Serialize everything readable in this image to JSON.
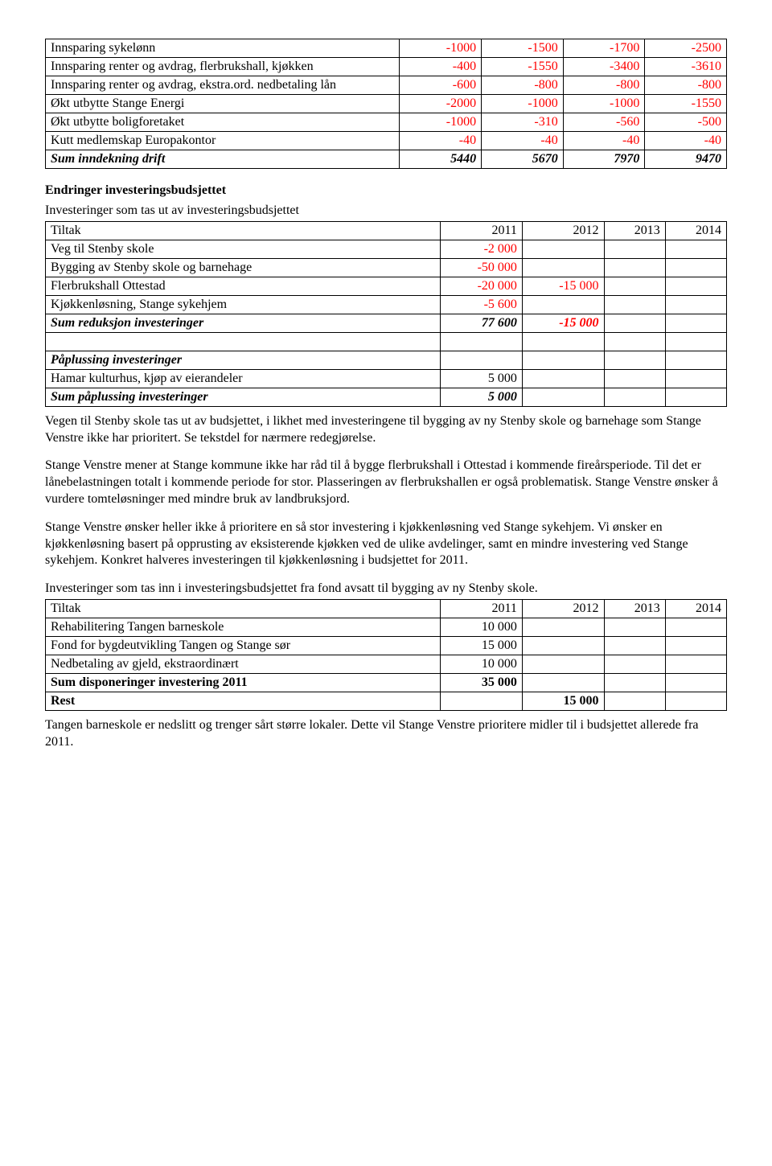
{
  "table1": {
    "rows": [
      {
        "label": "Innsparing sykelønn",
        "c": [
          "-1000",
          "-1500",
          "-1700",
          "-2500"
        ],
        "red": [
          1,
          1,
          1,
          1
        ]
      },
      {
        "label": "Innsparing renter og avdrag, flerbrukshall, kjøkken",
        "c": [
          "-400",
          "-1550",
          "-3400",
          "-3610"
        ],
        "red": [
          1,
          1,
          1,
          1
        ]
      },
      {
        "label": "Innsparing renter og avdrag, ekstra.ord. nedbetaling lån",
        "c": [
          "-600",
          "-800",
          "-800",
          "-800"
        ],
        "red": [
          1,
          1,
          1,
          1
        ]
      },
      {
        "label": "Økt utbytte Stange Energi",
        "c": [
          "-2000",
          "-1000",
          "-1000",
          "-1550"
        ],
        "red": [
          1,
          1,
          1,
          1
        ]
      },
      {
        "label": "Økt utbytte boligforetaket",
        "c": [
          "-1000",
          "-310",
          "-560",
          "-500"
        ],
        "red": [
          1,
          1,
          1,
          1
        ]
      },
      {
        "label": "Kutt medlemskap Europakontor",
        "c": [
          "-40",
          "-40",
          "-40",
          "-40"
        ],
        "red": [
          1,
          1,
          1,
          1
        ]
      },
      {
        "label": "Sum inndekning drift",
        "c": [
          "5440",
          "5670",
          "7970",
          "9470"
        ],
        "red": [
          0,
          0,
          0,
          0
        ],
        "bi": true
      }
    ]
  },
  "section1_title": "Endringer investeringsbudsjettet",
  "table2_intro": "Investeringer som tas ut av investeringsbudsjettet",
  "table2": {
    "header": [
      "Tiltak",
      "2011",
      "2012",
      "2013",
      "2014"
    ],
    "rows": [
      {
        "label": "Veg til Stenby skole",
        "c": [
          "-2 000",
          "",
          "",
          ""
        ],
        "red": [
          1,
          0,
          0,
          0
        ]
      },
      {
        "label": "Bygging av Stenby skole og barnehage",
        "c": [
          "-50 000",
          "",
          "",
          ""
        ],
        "red": [
          1,
          0,
          0,
          0
        ]
      },
      {
        "label": "Flerbrukshall Ottestad",
        "c": [
          "-20 000",
          "-15 000",
          "",
          ""
        ],
        "red": [
          1,
          1,
          0,
          0
        ]
      },
      {
        "label": "Kjøkkenløsning, Stange sykehjem",
        "c": [
          "-5 600",
          "",
          "",
          ""
        ],
        "red": [
          1,
          0,
          0,
          0
        ]
      },
      {
        "label": "Sum reduksjon investeringer",
        "c": [
          "77 600",
          "-15 000",
          "",
          ""
        ],
        "red": [
          0,
          1,
          0,
          0
        ],
        "bi": true
      }
    ],
    "spacer": true,
    "rows2": [
      {
        "label": "Påplussing investeringer",
        "c": [
          "",
          "",
          "",
          ""
        ],
        "bi": true
      },
      {
        "label": "Hamar kulturhus, kjøp av eierandeler",
        "c": [
          "5 000",
          "",
          "",
          ""
        ],
        "red": [
          0,
          0,
          0,
          0
        ]
      },
      {
        "label": "Sum påplussing investeringer",
        "c": [
          "5 000",
          "",
          "",
          ""
        ],
        "red": [
          0,
          0,
          0,
          0
        ],
        "bi": true
      }
    ]
  },
  "para1": "Vegen til Stenby skole tas ut av budsjettet, i likhet med investeringene til bygging av ny Stenby skole og barnehage som Stange Venstre ikke har prioritert. Se tekstdel for nærmere redegjørelse.",
  "para2": "Stange Venstre mener at Stange kommune ikke har råd til å bygge flerbrukshall i Ottestad i kommende fireårsperiode. Til det er lånebelastningen totalt i kommende periode for stor. Plasseringen av flerbrukshallen er også problematisk. Stange Venstre ønsker å vurdere tomteløsninger med mindre bruk av landbruksjord.",
  "para3": "Stange Venstre ønsker heller ikke å prioritere en så stor investering i kjøkkenløsning ved Stange sykehjem. Vi ønsker en kjøkkenløsning basert på opprusting av eksisterende kjøkken ved de ulike avdelinger, samt en mindre investering ved Stange sykehjem.  Konkret halveres investeringen til kjøkkenløsning i budsjettet for 2011.",
  "table3_intro": "Investeringer som tas inn i investeringsbudsjettet fra fond avsatt til bygging av ny Stenby skole.",
  "table3": {
    "header": [
      "Tiltak",
      "2011",
      "2012",
      "2013",
      "2014"
    ],
    "rows": [
      {
        "label": "Rehabilitering Tangen barneskole",
        "c": [
          "10 000",
          "",
          "",
          ""
        ]
      },
      {
        "label": "Fond for bygdeutvikling Tangen og Stange sør",
        "c": [
          "15 000",
          "",
          "",
          ""
        ]
      },
      {
        "label": "Nedbetaling av gjeld, ekstraordinært",
        "c": [
          "10 000",
          "",
          "",
          ""
        ]
      },
      {
        "label": "Sum disponeringer investering 2011",
        "c": [
          "35 000",
          "",
          "",
          ""
        ],
        "b": true
      },
      {
        "label": "Rest",
        "c": [
          "",
          "15 000",
          "",
          ""
        ],
        "b": true
      }
    ]
  },
  "para4": "Tangen barneskole er nedslitt og trenger sårt større lokaler. Dette vil Stange Venstre prioritere midler til i budsjettet allerede fra 2011."
}
